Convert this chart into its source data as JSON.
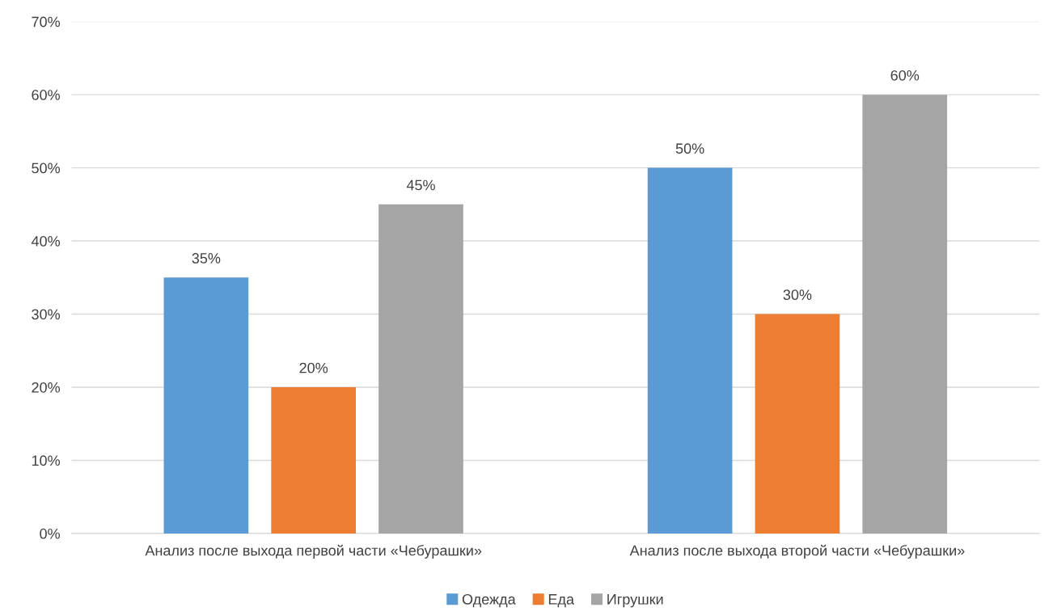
{
  "chart_data": {
    "type": "bar",
    "categories": [
      "Анализ после выхода первой части «Чебурашки»",
      "Анализ после выхода второй части «Чебурашки»"
    ],
    "series": [
      {
        "name": "Одежда",
        "color": "#5b9bd5",
        "values": [
          35,
          50
        ],
        "value_labels": [
          "35%",
          "50%"
        ]
      },
      {
        "name": "Еда",
        "color": "#ed7d31",
        "values": [
          20,
          30
        ],
        "value_labels": [
          "20%",
          "30%"
        ]
      },
      {
        "name": "Игрушки",
        "color": "#a5a5a5",
        "values": [
          45,
          60
        ],
        "value_labels": [
          "45%",
          "60%"
        ]
      }
    ],
    "ylim": [
      0,
      70
    ],
    "yticks": [
      {
        "value": 0,
        "label": "0%"
      },
      {
        "value": 10,
        "label": "10%"
      },
      {
        "value": 20,
        "label": "20%"
      },
      {
        "value": 30,
        "label": "30%"
      },
      {
        "value": 40,
        "label": "40%"
      },
      {
        "value": 50,
        "label": "50%"
      },
      {
        "value": 60,
        "label": "60%"
      },
      {
        "value": 70,
        "label": "70%"
      }
    ],
    "grid": "y",
    "legend": "bottom"
  }
}
